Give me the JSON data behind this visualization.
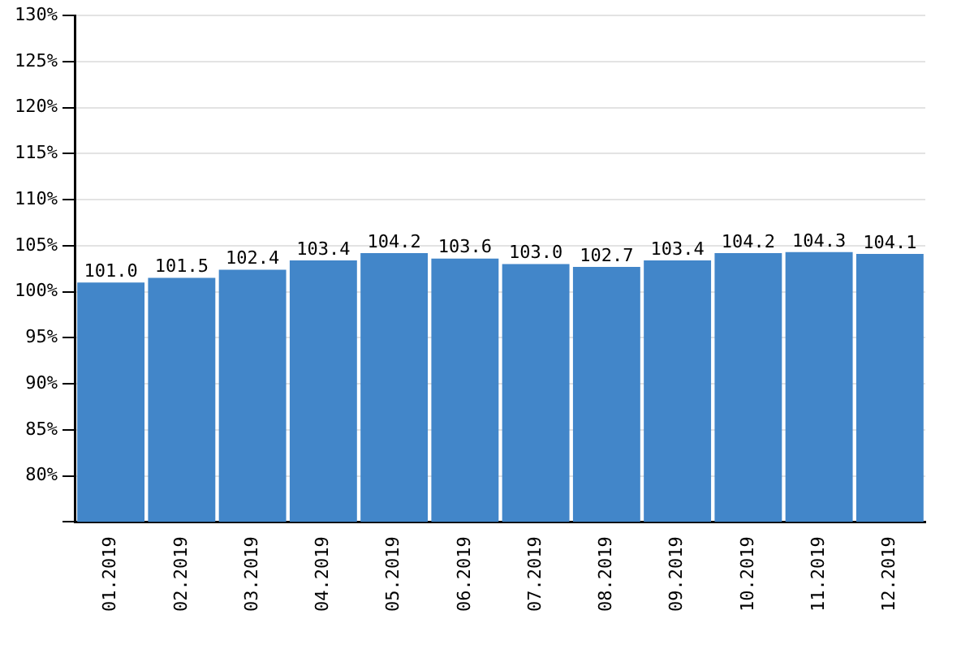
{
  "chart_data": {
    "type": "bar",
    "categories": [
      "01.2019",
      "02.2019",
      "03.2019",
      "04.2019",
      "05.2019",
      "06.2019",
      "07.2019",
      "08.2019",
      "09.2019",
      "10.2019",
      "11.2019",
      "12.2019"
    ],
    "values": [
      101.0,
      101.5,
      102.4,
      103.4,
      104.2,
      103.6,
      103.0,
      102.7,
      103.4,
      104.2,
      104.3,
      104.1
    ],
    "value_labels": [
      "101.0",
      "101.5",
      "102.4",
      "103.4",
      "104.2",
      "103.6",
      "103.0",
      "102.7",
      "103.4",
      "104.2",
      "104.3",
      "104.1"
    ],
    "color": "#4286c9",
    "ylim": [
      75,
      130
    ],
    "yticks": [
      {
        "value": 75,
        "label": null
      },
      {
        "value": 80,
        "label": "80%"
      },
      {
        "value": 85,
        "label": "85%"
      },
      {
        "value": 90,
        "label": "90%"
      },
      {
        "value": 95,
        "label": "95%"
      },
      {
        "value": 100,
        "label": "100%"
      },
      {
        "value": 105,
        "label": "105%"
      },
      {
        "value": 110,
        "label": "110%"
      },
      {
        "value": 115,
        "label": "115%"
      },
      {
        "value": 120,
        "label": "120%"
      },
      {
        "value": 125,
        "label": "125%"
      },
      {
        "value": 130,
        "label": "130%"
      }
    ],
    "grid": "y",
    "legend": false
  }
}
